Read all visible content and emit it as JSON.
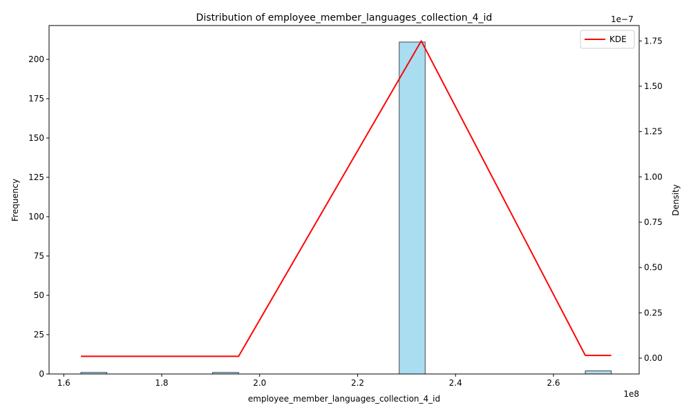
{
  "chart_data": {
    "type": "bar",
    "title": "Distribution of employee_member_languages_collection_4_id",
    "xlabel": "employee_member_languages_collection_4_id",
    "ylabel": "Frequency",
    "y2label": "Density",
    "x_offset_label": "1e8",
    "y2_offset_label": "1e−7",
    "xlim": [
      157000000.0,
      277500000.0
    ],
    "ylim": [
      0,
      221.5
    ],
    "y2lim": [
      -8.74e-09,
      1.835e-07
    ],
    "x_ticks": [
      160000000.0,
      180000000.0,
      200000000.0,
      220000000.0,
      240000000.0,
      260000000.0
    ],
    "x_tick_labels": [
      "1.6",
      "1.8",
      "2.0",
      "2.2",
      "2.4",
      "2.6"
    ],
    "y_ticks": [
      0,
      25,
      50,
      75,
      100,
      125,
      150,
      175,
      200
    ],
    "y_tick_labels": [
      "0",
      "25",
      "50",
      "75",
      "100",
      "125",
      "150",
      "175",
      "200"
    ],
    "y2_ticks": [
      0,
      2.5e-08,
      5e-08,
      7.5e-08,
      1e-07,
      1.25e-07,
      1.5e-07,
      1.75e-07
    ],
    "y2_tick_labels": [
      "0.00",
      "0.25",
      "0.50",
      "0.75",
      "1.00",
      "1.25",
      "1.50",
      "1.75"
    ],
    "bins": [
      {
        "x0": 163500000.0,
        "x1": 168800000.0,
        "count": 1
      },
      {
        "x0": 190400000.0,
        "x1": 195700000.0,
        "count": 1
      },
      {
        "x0": 228500000.0,
        "x1": 233800000.0,
        "count": 211
      },
      {
        "x0": 266500000.0,
        "x1": 271800000.0,
        "count": 2
      }
    ],
    "bar_color": "#87CEEB",
    "bar_edge_color": "#000000",
    "kde": {
      "name": "KDE",
      "color": "#ff0000",
      "x": [
        163500000.0,
        195700000.0,
        233000000.0,
        266500000.0,
        271800000.0
      ],
      "y": [
        1e-09,
        1e-09,
        1.75e-07,
        1.5e-09,
        1.5e-09
      ]
    },
    "legend": {
      "position": "upper-right",
      "entries": [
        "KDE"
      ]
    },
    "grid": false
  }
}
